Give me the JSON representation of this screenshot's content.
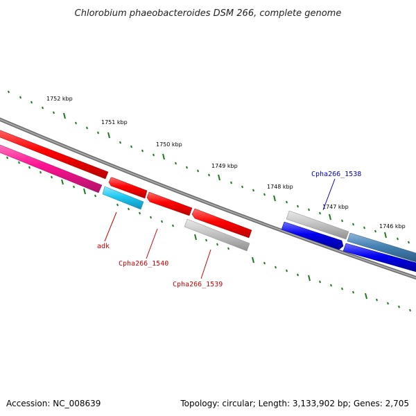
{
  "title": "Chlorobium phaeobacteroides DSM 266, complete genome",
  "footer": {
    "accession": "Accession: NC_008639",
    "summary": "Topology: circular; Length: 3,133,902 bp; Genes: 2,705"
  },
  "ruler": {
    "tick_labels": [
      "1752 kbp",
      "1751 kbp",
      "1750 kbp",
      "1749 kbp",
      "1748 kbp",
      "1747 kbp",
      "1746 kbp"
    ]
  },
  "gene_labels": [
    {
      "id": "adk",
      "text": "adk",
      "color": "#cc0000"
    },
    {
      "id": "cpha1540",
      "text": "Cpha266_1540",
      "color": "#cc0000"
    },
    {
      "id": "cpha1539",
      "text": "Cpha266_1539",
      "color": "#cc0000"
    },
    {
      "id": "cpha1538",
      "text": "Cpha266_1538",
      "color": "#0000cc"
    }
  ],
  "colors": {
    "backbone": "#808080",
    "tick": "#1a7a1a",
    "cds_red": "#ff0000",
    "cds_magenta": "#ff1493",
    "cds_cyan": "#1ec8f0",
    "cds_gray": "#c0c0c0",
    "cds_blue": "#0000ff",
    "cds_steelblue": "#4682b4"
  }
}
